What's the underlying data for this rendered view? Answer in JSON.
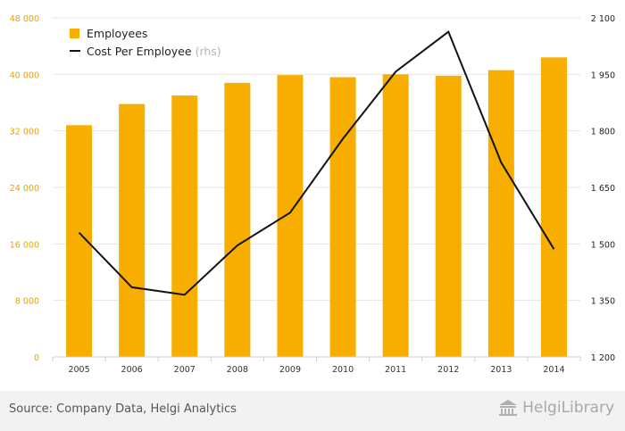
{
  "colors": {
    "bar": "#F7AE00",
    "line": "#111111",
    "left_axis_text": "#E8A200",
    "right_axis_text": "#222222"
  },
  "chart_data": {
    "type": "bar+line",
    "categories": [
      "2005",
      "2006",
      "2007",
      "2008",
      "2009",
      "2010",
      "2011",
      "2012",
      "2013",
      "2014"
    ],
    "series": [
      {
        "name": "Employees",
        "type": "bar",
        "axis": "left",
        "values": [
          32800,
          35800,
          37000,
          38800,
          39900,
          39600,
          40000,
          39800,
          40600,
          42400
        ]
      },
      {
        "name": "Cost Per Employee",
        "name_note": "(rhs)",
        "type": "line",
        "axis": "right",
        "values": [
          1530,
          1385,
          1365,
          1496,
          1583,
          1779,
          1957,
          2063,
          1716,
          1486
        ]
      }
    ],
    "left_axis": {
      "ylim": [
        0,
        48000
      ],
      "ticks": [
        "0",
        "8 000",
        "16 000",
        "24 000",
        "32 000",
        "40 000",
        "48 000"
      ]
    },
    "right_axis": {
      "ylim": [
        1200,
        2100
      ],
      "ticks": [
        "1 200",
        "1 350",
        "1 500",
        "1 650",
        "1 800",
        "1 950",
        "2 100"
      ]
    },
    "grid": "horizontal",
    "legend_position": "top-left"
  },
  "footer": {
    "source": "Source: Company Data, Helgi Analytics",
    "brand": "HelgiLibrary",
    "brand_icon": "library-building-icon"
  }
}
